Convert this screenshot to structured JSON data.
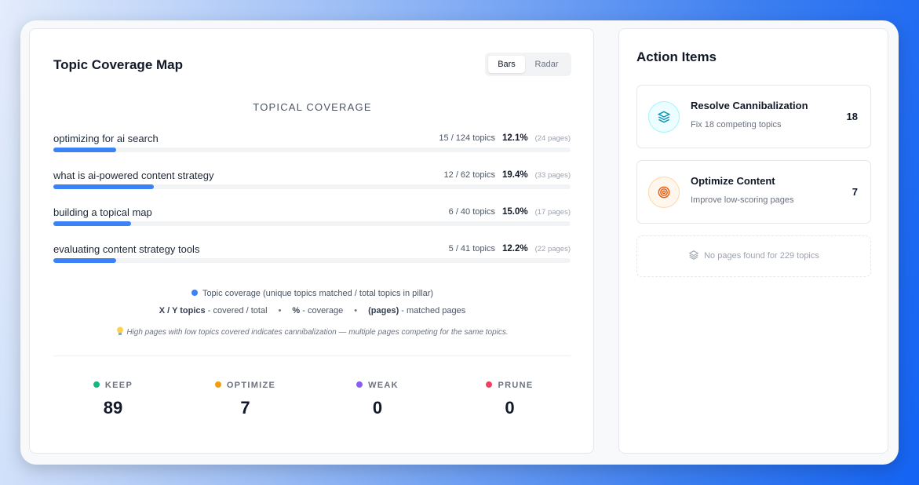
{
  "coverage_map": {
    "title": "Topic Coverage Map",
    "toggle": [
      "Bars",
      "Radar"
    ],
    "chart_title": "TOPICAL COVERAGE",
    "coverage_scale": [
      0,
      100
    ],
    "rows": [
      {
        "label": "optimizing for ai search",
        "topics": "15 / 124 topics",
        "coverage": 12.1,
        "coverage_label": "12.1%",
        "pages": "(24 pages)"
      },
      {
        "label": "what is ai-powered content strategy",
        "topics": "12 / 62 topics",
        "coverage": 19.4,
        "coverage_label": "19.4%",
        "pages": "(33 pages)"
      },
      {
        "label": "building a topical map",
        "topics": "6 / 40 topics",
        "coverage": 15.0,
        "coverage_label": "15.0%",
        "pages": "(17 pages)"
      },
      {
        "label": "evaluating content strategy tools",
        "topics": "5 / 41 topics",
        "coverage": 12.2,
        "coverage_label": "12.2%",
        "pages": "(22 pages)"
      }
    ],
    "legend": "Topic coverage (unique topics matched / total topics in pillar)",
    "key": [
      {
        "term": "X / Y topics",
        "desc": "- covered / total"
      },
      {
        "term": "%",
        "desc": "- coverage"
      },
      {
        "term": "(pages)",
        "desc": "- matched pages"
      }
    ],
    "note": "High pages with low topics covered indicates cannibalization — multiple pages competing for the same topics.",
    "stats": [
      {
        "label": "KEEP",
        "value": 89,
        "color": "#10b981"
      },
      {
        "label": "OPTIMIZE",
        "value": 7,
        "color": "#f59e0b"
      },
      {
        "label": "WEAK",
        "value": 0,
        "color": "#8b5cf6"
      },
      {
        "label": "PRUNE",
        "value": 0,
        "color": "#f43f5e"
      }
    ]
  },
  "action_items": {
    "title": "Action Items",
    "items": [
      {
        "title": "Resolve Cannibalization",
        "subtitle": "Fix 18 competing topics",
        "count": 18
      },
      {
        "title": "Optimize Content",
        "subtitle": "Improve low-scoring pages",
        "count": 7
      }
    ],
    "empty": "No pages found for 229 topics"
  }
}
